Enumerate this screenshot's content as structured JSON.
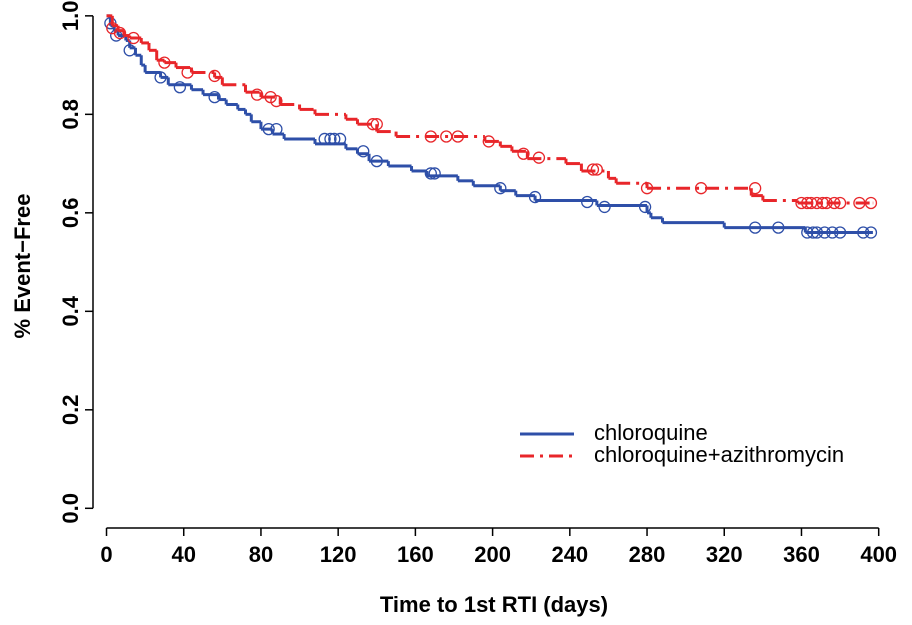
{
  "chart_data": {
    "type": "km",
    "xlabel": "Time to 1st RTI (days)",
    "ylabel": "% Event−Free",
    "xlim": [
      -7,
      410
    ],
    "ylim": [
      -0.04,
      1.02
    ],
    "xticks": [
      0,
      40,
      80,
      120,
      160,
      200,
      240,
      280,
      320,
      360,
      400
    ],
    "yticks": [
      {
        "value": 0,
        "label": "0.0"
      },
      {
        "value": 0.2,
        "label": "0.2"
      },
      {
        "value": 0.4,
        "label": "0.4"
      },
      {
        "value": 0.6,
        "label": "0.6"
      },
      {
        "value": 0.8,
        "label": "0.8"
      },
      {
        "value": 1,
        "label": "1.0"
      }
    ],
    "legend": "bottom-right",
    "series": [
      {
        "name": "chloroquine",
        "color": "#2e4fa8",
        "dash": "solid",
        "x": [
          0,
          2,
          4,
          6,
          10,
          12,
          15,
          18,
          20,
          28,
          32,
          44,
          50,
          58,
          62,
          68,
          72,
          75,
          80,
          86,
          92,
          108,
          124,
          130,
          136,
          146,
          158,
          166,
          182,
          190,
          204,
          212,
          222,
          254,
          280,
          282,
          288,
          320,
          362,
          397
        ],
        "values": [
          1.0,
          0.98,
          0.97,
          0.96,
          0.95,
          0.935,
          0.92,
          0.9,
          0.885,
          0.875,
          0.86,
          0.85,
          0.84,
          0.83,
          0.82,
          0.81,
          0.8,
          0.785,
          0.77,
          0.76,
          0.75,
          0.74,
          0.73,
          0.72,
          0.705,
          0.695,
          0.685,
          0.675,
          0.665,
          0.655,
          0.645,
          0.635,
          0.625,
          0.615,
          0.6,
          0.59,
          0.58,
          0.57,
          0.56,
          0.56
        ],
        "censor_x": [
          2,
          5,
          12,
          28,
          38,
          56,
          84,
          88,
          113,
          116,
          118,
          121,
          133,
          140,
          168,
          170,
          204,
          222,
          249,
          258,
          279,
          336,
          348,
          363,
          366,
          368,
          372,
          376,
          380,
          392,
          396
        ],
        "censor_values": [
          0.985,
          0.96,
          0.93,
          0.875,
          0.855,
          0.835,
          0.77,
          0.77,
          0.75,
          0.75,
          0.75,
          0.75,
          0.725,
          0.705,
          0.68,
          0.68,
          0.65,
          0.632,
          0.622,
          0.612,
          0.612,
          0.57,
          0.57,
          0.56,
          0.56,
          0.56,
          0.56,
          0.56,
          0.56,
          0.56,
          0.56
        ]
      },
      {
        "name": "chloroquine+azithromycin",
        "color": "#e8262a",
        "dash": "dashdot",
        "x": [
          0,
          3,
          6,
          9,
          12,
          18,
          22,
          26,
          30,
          36,
          44,
          56,
          60,
          72,
          80,
          90,
          100,
          108,
          124,
          130,
          140,
          150,
          196,
          204,
          210,
          218,
          238,
          246,
          260,
          264,
          280,
          334,
          340,
          358,
          397
        ],
        "values": [
          1.0,
          0.98,
          0.97,
          0.96,
          0.955,
          0.945,
          0.93,
          0.91,
          0.905,
          0.895,
          0.885,
          0.875,
          0.86,
          0.845,
          0.835,
          0.82,
          0.81,
          0.8,
          0.79,
          0.78,
          0.765,
          0.755,
          0.745,
          0.735,
          0.725,
          0.71,
          0.7,
          0.685,
          0.67,
          0.66,
          0.65,
          0.635,
          0.625,
          0.62,
          0.62
        ],
        "censor_x": [
          3,
          7,
          14,
          30,
          42,
          56,
          78,
          85,
          88,
          138,
          140,
          168,
          176,
          182,
          198,
          216,
          224,
          252,
          254,
          280,
          308,
          336,
          360,
          363,
          365,
          368,
          371,
          373,
          377,
          380,
          390,
          396
        ],
        "censor_values": [
          0.975,
          0.965,
          0.955,
          0.905,
          0.885,
          0.878,
          0.84,
          0.835,
          0.827,
          0.78,
          0.78,
          0.755,
          0.755,
          0.755,
          0.745,
          0.72,
          0.712,
          0.688,
          0.688,
          0.65,
          0.65,
          0.65,
          0.62,
          0.62,
          0.62,
          0.62,
          0.62,
          0.62,
          0.62,
          0.62,
          0.62,
          0.62
        ]
      }
    ]
  }
}
